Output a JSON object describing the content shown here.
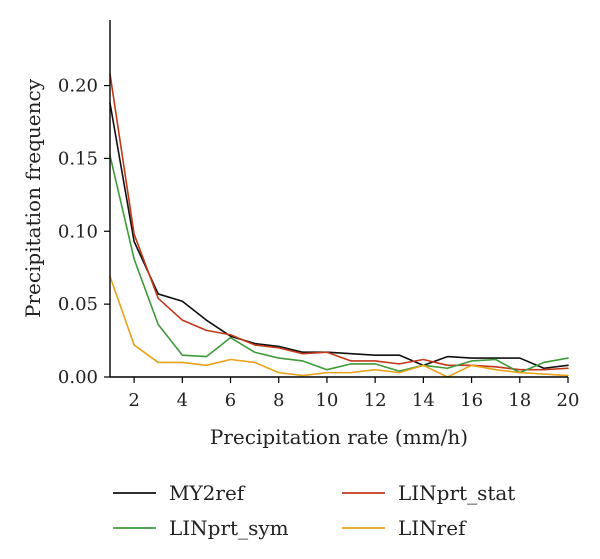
{
  "chart_data": {
    "type": "line",
    "title": "",
    "xlabel": "Precipitation rate (mm/h)",
    "ylabel": "Precipitation frequency",
    "xlim": [
      1,
      20
    ],
    "ylim": [
      0,
      0.245
    ],
    "xticks": [
      2,
      4,
      6,
      8,
      10,
      12,
      14,
      16,
      18,
      20
    ],
    "xtick_labels": [
      "2",
      "4",
      "6",
      "8",
      "10",
      "12",
      "14",
      "16",
      "18",
      "20"
    ],
    "yticks": [
      0.0,
      0.05,
      0.1,
      0.15,
      0.2
    ],
    "ytick_labels": [
      "0.00",
      "0.05",
      "0.10",
      "0.15",
      "0.20"
    ],
    "grid": false,
    "legend_position": "bottom",
    "x": [
      1,
      2,
      3,
      4,
      5,
      6,
      7,
      8,
      9,
      10,
      11,
      12,
      13,
      14,
      15,
      16,
      17,
      18,
      19,
      20
    ],
    "series": [
      {
        "name": "MY2ref",
        "color": "#111111",
        "values": [
          0.188,
          0.093,
          0.057,
          0.052,
          0.039,
          0.028,
          0.023,
          0.021,
          0.017,
          0.017,
          0.016,
          0.015,
          0.015,
          0.008,
          0.014,
          0.013,
          0.013,
          0.013,
          0.006,
          0.008
        ]
      },
      {
        "name": "LINprt_stat",
        "color": "#c0391b",
        "values": [
          0.208,
          0.098,
          0.054,
          0.039,
          0.032,
          0.029,
          0.022,
          0.02,
          0.016,
          0.017,
          0.011,
          0.011,
          0.009,
          0.012,
          0.008,
          0.008,
          0.007,
          0.005,
          0.005,
          0.006
        ]
      },
      {
        "name": "LINprt_sym",
        "color": "#3f9a3a",
        "values": [
          0.152,
          0.081,
          0.036,
          0.015,
          0.014,
          0.027,
          0.017,
          0.013,
          0.011,
          0.005,
          0.009,
          0.009,
          0.004,
          0.008,
          0.006,
          0.011,
          0.012,
          0.003,
          0.01,
          0.013
        ]
      },
      {
        "name": "LINref",
        "color": "#e8a21a",
        "values": [
          0.069,
          0.022,
          0.01,
          0.01,
          0.008,
          0.012,
          0.01,
          0.003,
          0.001,
          0.003,
          0.003,
          0.005,
          0.003,
          0.008,
          0.0,
          0.008,
          0.005,
          0.003,
          0.002,
          0.001
        ]
      }
    ]
  }
}
